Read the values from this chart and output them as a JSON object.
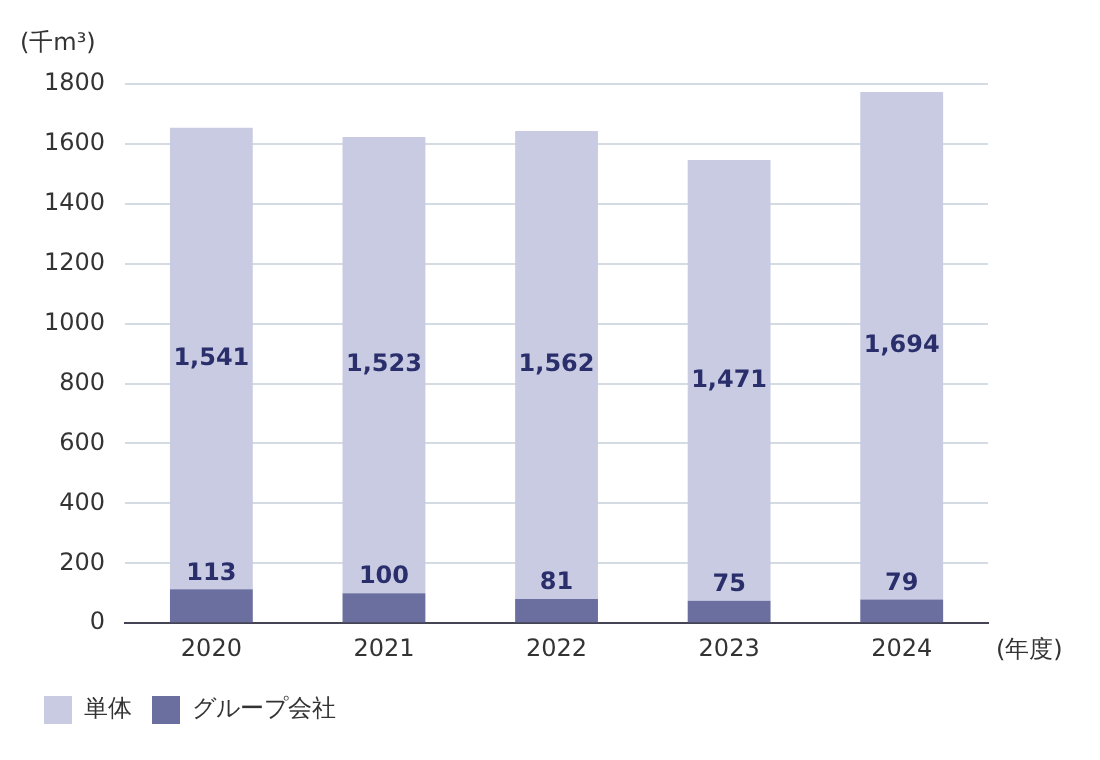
{
  "chart_data": {
    "type": "bar",
    "stacked": true,
    "ylabel": "(千m³)",
    "xlabel": "(年度)",
    "categories": [
      "2020",
      "2021",
      "2022",
      "2023",
      "2024"
    ],
    "series": [
      {
        "name": "グループ会社",
        "color": "#6a6f9f",
        "values": [
          113,
          100,
          81,
          75,
          79
        ],
        "value_labels": [
          "113",
          "100",
          "81",
          "75",
          "79"
        ]
      },
      {
        "name": "単体",
        "color": "#c9cbe3",
        "values": [
          1541,
          1523,
          1562,
          1471,
          1694
        ],
        "value_labels": [
          "1,541",
          "1,523",
          "1,562",
          "1,471",
          "1,694"
        ]
      }
    ],
    "ylim": [
      0,
      1800
    ],
    "yticks": [
      0,
      200,
      400,
      600,
      800,
      1000,
      1200,
      1400,
      1600,
      1800
    ],
    "grid": "y",
    "legend": "bottom left"
  }
}
